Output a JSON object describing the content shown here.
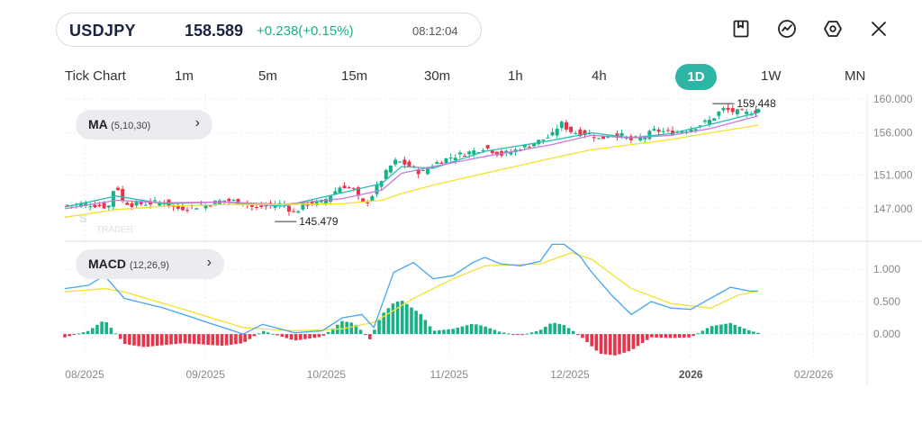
{
  "header": {
    "symbol": "USDJPY",
    "price": "158.589",
    "change": "+0.238(+0.15%)",
    "time": "08:12:04"
  },
  "toolbar": [
    "bookmark-icon",
    "trend-icon",
    "settings-icon",
    "close-icon"
  ],
  "timeframes": {
    "items": [
      "Tick Chart",
      "1m",
      "5m",
      "15m",
      "30m",
      "1h",
      "4h",
      "1D",
      "1W",
      "MN"
    ],
    "selected": "1D"
  },
  "indicators": {
    "ma": {
      "name": "MA",
      "params": "(5,10,30)"
    },
    "macd": {
      "name": "MACD",
      "params": "(12,26,9)"
    }
  },
  "watermark": {
    "line1": "S",
    "line2": "TRADER"
  },
  "colors": {
    "up": "#18b187",
    "down": "#e8334a",
    "ma_fast": "#21c0b0",
    "ma_mid": "#c77bd8",
    "ma_slow": "#f2e231",
    "macd": "#42a5f5",
    "signal": "#f2e231",
    "accent": "#2fb5a5"
  },
  "chart_data": [
    {
      "type": "candlestick",
      "title": "",
      "y_ticks": [
        "160.000",
        "156.000",
        "151.000",
        "147.000"
      ],
      "ylim": [
        144,
        160
      ],
      "x_ticks": [
        "08/2025",
        "09/2025",
        "10/2025",
        "11/2025",
        "12/2025",
        "2026",
        "02/2026"
      ],
      "annotations": [
        {
          "label": "159.448",
          "kind": "high"
        },
        {
          "label": "145.479",
          "kind": "low"
        }
      ],
      "close_path": [
        [
          0,
          147.4
        ],
        [
          10,
          147.6
        ],
        [
          22,
          147.2
        ],
        [
          26,
          150.4
        ],
        [
          28,
          148.0
        ],
        [
          34,
          147.5
        ],
        [
          50,
          147.8
        ],
        [
          56,
          147.0
        ],
        [
          70,
          147.4
        ],
        [
          80,
          148.0
        ],
        [
          90,
          147.8
        ],
        [
          96,
          147.0
        ],
        [
          100,
          147.3
        ],
        [
          110,
          147.6
        ],
        [
          116,
          146.4
        ],
        [
          120,
          147.5
        ],
        [
          130,
          147.8
        ],
        [
          140,
          149.8
        ],
        [
          146,
          149.2
        ],
        [
          150,
          147.5
        ],
        [
          154,
          148.2
        ],
        [
          160,
          150.5
        ],
        [
          166,
          152.6
        ],
        [
          170,
          152.5
        ],
        [
          176,
          151.8
        ],
        [
          180,
          151.2
        ],
        [
          186,
          152.3
        ],
        [
          196,
          153.2
        ],
        [
          206,
          153.8
        ],
        [
          212,
          154.3
        ],
        [
          220,
          153.4
        ],
        [
          226,
          153.8
        ],
        [
          236,
          154.7
        ],
        [
          246,
          155.7
        ],
        [
          250,
          157.2
        ],
        [
          256,
          156.1
        ],
        [
          266,
          155.8
        ],
        [
          270,
          155.2
        ],
        [
          276,
          155.9
        ],
        [
          282,
          155.6
        ],
        [
          286,
          155.1
        ],
        [
          292,
          155.5
        ],
        [
          298,
          156.3
        ],
        [
          306,
          156.0
        ],
        [
          316,
          156.5
        ],
        [
          326,
          157.5
        ],
        [
          332,
          158.8
        ],
        [
          338,
          158.5
        ],
        [
          344,
          158.3
        ],
        [
          350,
          158.6
        ]
      ],
      "ma_series": {
        "MA5": [
          [
            0,
            147.2
          ],
          [
            26,
            148.5
          ],
          [
            50,
            147.6
          ],
          [
            80,
            147.8
          ],
          [
            110,
            147.3
          ],
          [
            140,
            148.9
          ],
          [
            160,
            150.0
          ],
          [
            170,
            152.0
          ],
          [
            186,
            151.8
          ],
          [
            212,
            153.8
          ],
          [
            246,
            155.1
          ],
          [
            266,
            156.0
          ],
          [
            286,
            155.4
          ],
          [
            306,
            155.9
          ],
          [
            326,
            157.0
          ],
          [
            350,
            158.4
          ]
        ],
        "MA10": [
          [
            0,
            147.0
          ],
          [
            26,
            148.0
          ],
          [
            50,
            147.7
          ],
          [
            80,
            147.8
          ],
          [
            110,
            147.5
          ],
          [
            140,
            148.2
          ],
          [
            160,
            149.2
          ],
          [
            170,
            151.2
          ],
          [
            186,
            152.0
          ],
          [
            212,
            153.2
          ],
          [
            246,
            154.6
          ],
          [
            266,
            155.7
          ],
          [
            286,
            155.4
          ],
          [
            306,
            155.7
          ],
          [
            326,
            156.5
          ],
          [
            350,
            158.0
          ]
        ],
        "MA30": [
          [
            0,
            146.0
          ],
          [
            26,
            146.9
          ],
          [
            50,
            147.3
          ],
          [
            80,
            147.5
          ],
          [
            110,
            147.5
          ],
          [
            140,
            147.6
          ],
          [
            160,
            148.0
          ],
          [
            170,
            148.8
          ],
          [
            186,
            149.8
          ],
          [
            212,
            151.2
          ],
          [
            246,
            153.0
          ],
          [
            266,
            154.0
          ],
          [
            286,
            154.6
          ],
          [
            306,
            155.2
          ],
          [
            326,
            156.0
          ],
          [
            350,
            156.9
          ]
        ]
      },
      "n_candles": 150
    },
    {
      "type": "macd",
      "title": "",
      "y_ticks": [
        "1.000",
        "0.500",
        "0.000"
      ],
      "ylim": [
        -0.4,
        1.4
      ],
      "macd_line": [
        [
          0,
          0.7
        ],
        [
          12,
          0.75
        ],
        [
          20,
          0.9
        ],
        [
          30,
          0.55
        ],
        [
          50,
          0.4
        ],
        [
          70,
          0.2
        ],
        [
          90,
          0.0
        ],
        [
          100,
          0.15
        ],
        [
          116,
          0.02
        ],
        [
          130,
          0.05
        ],
        [
          140,
          0.25
        ],
        [
          150,
          0.3
        ],
        [
          156,
          0.1
        ],
        [
          166,
          0.95
        ],
        [
          176,
          1.1
        ],
        [
          186,
          0.85
        ],
        [
          196,
          0.9
        ],
        [
          206,
          1.1
        ],
        [
          212,
          1.18
        ],
        [
          220,
          1.08
        ],
        [
          230,
          1.05
        ],
        [
          240,
          1.12
        ],
        [
          246,
          1.38
        ],
        [
          252,
          1.38
        ],
        [
          260,
          1.2
        ],
        [
          266,
          0.95
        ],
        [
          276,
          0.6
        ],
        [
          286,
          0.3
        ],
        [
          296,
          0.5
        ],
        [
          306,
          0.4
        ],
        [
          316,
          0.38
        ],
        [
          326,
          0.55
        ],
        [
          336,
          0.72
        ],
        [
          346,
          0.66
        ],
        [
          350,
          0.66
        ]
      ],
      "signal_line": [
        [
          0,
          0.65
        ],
        [
          20,
          0.7
        ],
        [
          30,
          0.65
        ],
        [
          60,
          0.38
        ],
        [
          90,
          0.1
        ],
        [
          116,
          0.05
        ],
        [
          140,
          0.08
        ],
        [
          156,
          0.18
        ],
        [
          176,
          0.55
        ],
        [
          196,
          0.85
        ],
        [
          212,
          1.05
        ],
        [
          240,
          1.08
        ],
        [
          256,
          1.25
        ],
        [
          266,
          1.15
        ],
        [
          286,
          0.7
        ],
        [
          306,
          0.47
        ],
        [
          326,
          0.4
        ],
        [
          340,
          0.6
        ],
        [
          350,
          0.66
        ]
      ],
      "histogram": [
        [
          0,
          -0.05
        ],
        [
          12,
          0.05
        ],
        [
          20,
          0.22
        ],
        [
          30,
          -0.15
        ],
        [
          40,
          -0.2
        ],
        [
          60,
          -0.14
        ],
        [
          80,
          -0.18
        ],
        [
          90,
          -0.14
        ],
        [
          100,
          0.05
        ],
        [
          116,
          -0.1
        ],
        [
          130,
          -0.04
        ],
        [
          140,
          0.2
        ],
        [
          146,
          0.17
        ],
        [
          154,
          -0.08
        ],
        [
          160,
          0.3
        ],
        [
          166,
          0.48
        ],
        [
          170,
          0.52
        ],
        [
          180,
          0.3
        ],
        [
          186,
          0.05
        ],
        [
          196,
          0.08
        ],
        [
          206,
          0.16
        ],
        [
          212,
          0.12
        ],
        [
          220,
          0.03
        ],
        [
          230,
          -0.02
        ],
        [
          240,
          0.06
        ],
        [
          246,
          0.18
        ],
        [
          252,
          0.14
        ],
        [
          260,
          -0.02
        ],
        [
          270,
          -0.3
        ],
        [
          278,
          -0.33
        ],
        [
          286,
          -0.25
        ],
        [
          296,
          -0.05
        ],
        [
          306,
          -0.06
        ],
        [
          316,
          -0.05
        ],
        [
          326,
          0.12
        ],
        [
          336,
          0.17
        ],
        [
          346,
          0.05
        ],
        [
          350,
          0.02
        ]
      ]
    }
  ]
}
